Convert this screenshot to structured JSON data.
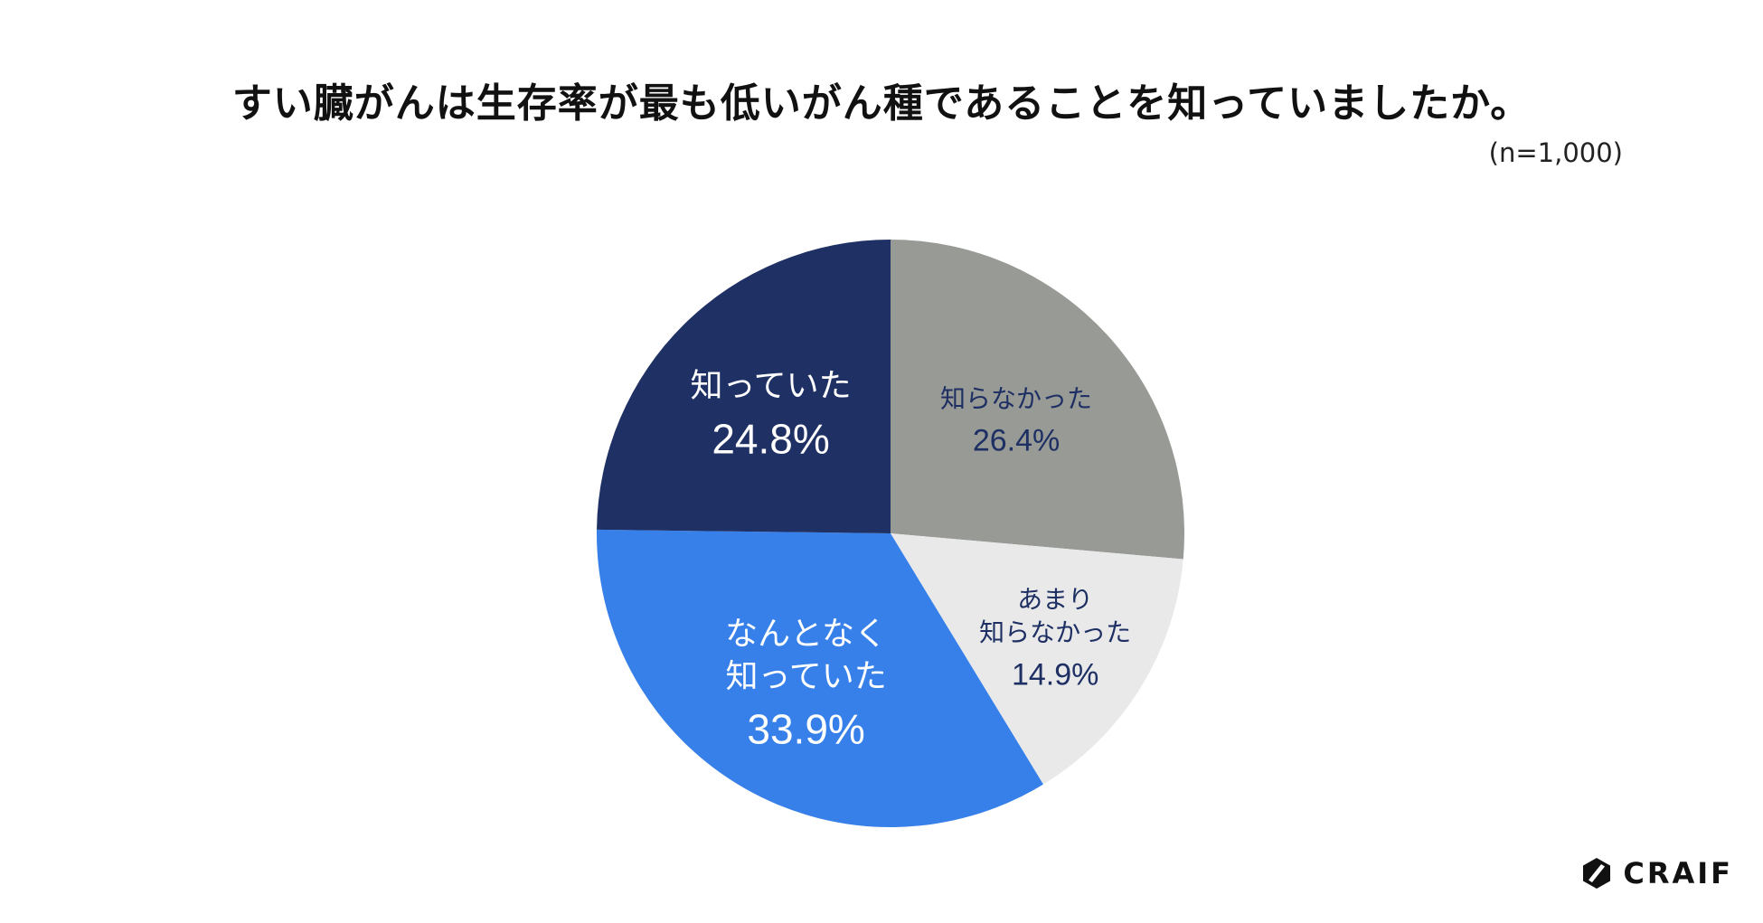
{
  "chart_data": {
    "type": "pie",
    "title": "すい臓がんは生存率が最も低いがん種であることを知っていましたか。",
    "subtitle": "(n=1,000)",
    "slices": [
      {
        "label_lines": [
          "知らなかった"
        ],
        "value": 26.4,
        "value_label": "26.4%",
        "color": "#989a96",
        "text_color": "#1e2f63"
      },
      {
        "label_lines": [
          "あまり",
          "知らなかった"
        ],
        "value": 14.9,
        "value_label": "14.9%",
        "color": "#e9e9ea",
        "text_color": "#1e2f63"
      },
      {
        "label_lines": [
          "なんとなく",
          "知っていた"
        ],
        "value": 33.9,
        "value_label": "33.9%",
        "color": "#3780ea",
        "text_color": "#ffffff"
      },
      {
        "label_lines": [
          "知っていた"
        ],
        "value": 24.8,
        "value_label": "24.8%",
        "color": "#1f3064",
        "text_color": "#ffffff"
      }
    ]
  },
  "logo": {
    "text": "CRAIF",
    "icon": "craif-logo-icon"
  }
}
